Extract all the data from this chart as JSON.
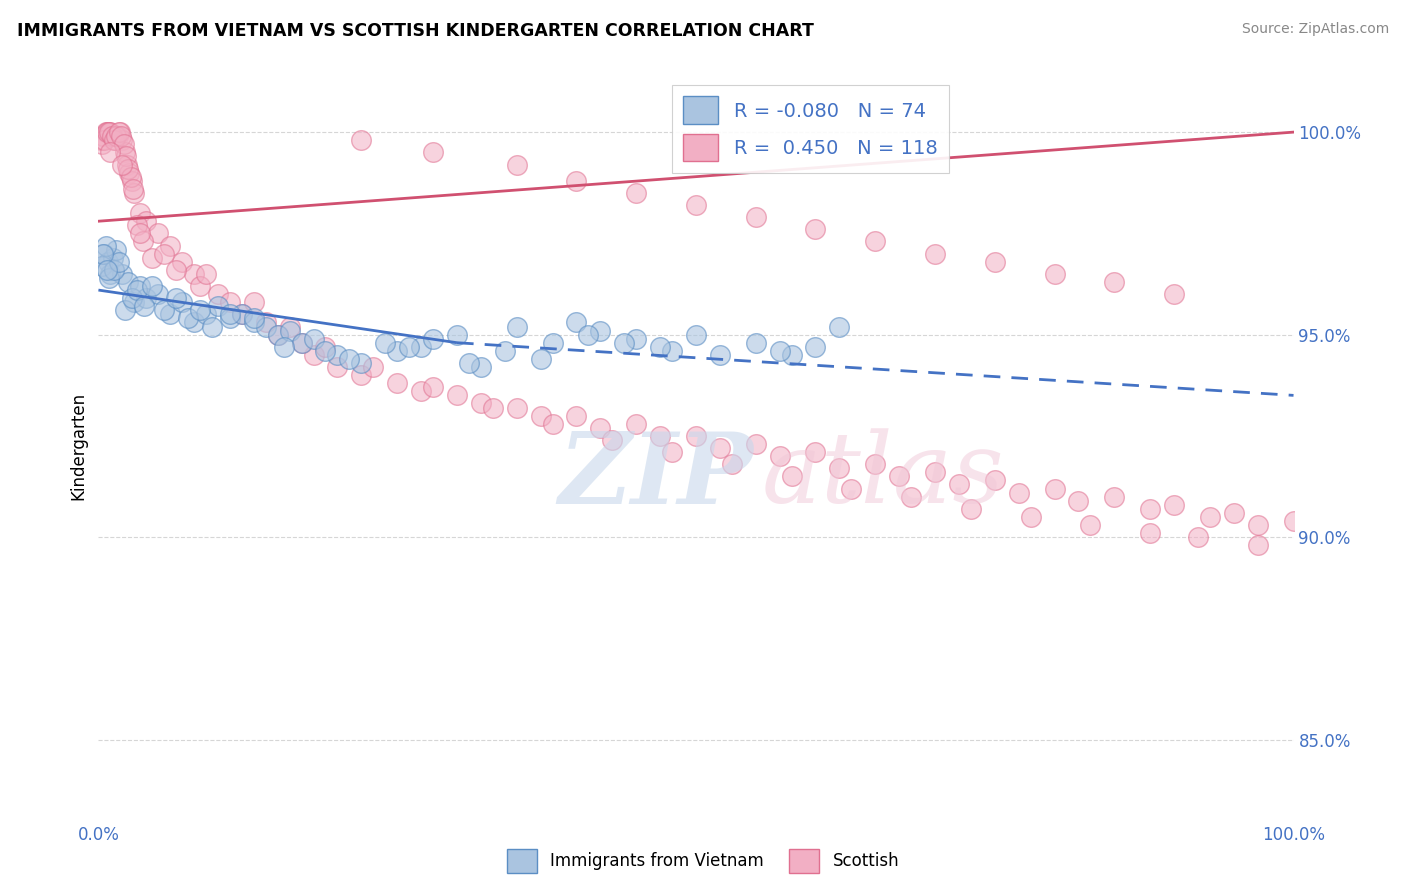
{
  "title": "IMMIGRANTS FROM VIETNAM VS SCOTTISH KINDERGARTEN CORRELATION CHART",
  "source": "Source: ZipAtlas.com",
  "ylabel": "Kindergarten",
  "R_blue": -0.08,
  "N_blue": 74,
  "R_pink": 0.45,
  "N_pink": 118,
  "blue_color": "#aac4e0",
  "pink_color": "#f2afc4",
  "blue_edge_color": "#5b8ec4",
  "pink_edge_color": "#e07090",
  "blue_line_color": "#4472c4",
  "pink_line_color": "#d05070",
  "legend_blue_color": "#4472c4",
  "legend_pink_color": "#e07898",
  "yticks": [
    85.0,
    90.0,
    95.0,
    100.0
  ],
  "ytick_labels": [
    "85.0%",
    "90.0%",
    "95.0%",
    "100.0%"
  ],
  "xlim": [
    0,
    100
  ],
  "ylim": [
    83.0,
    101.5
  ],
  "blue_line_x": [
    0,
    100
  ],
  "blue_line_y_solid_start": 96.1,
  "blue_line_y_solid_end": 94.8,
  "blue_line_solid_end_x": 30,
  "blue_line_y_dash_start": 94.8,
  "blue_line_y_dash_end": 93.5,
  "pink_line_x": [
    0,
    100
  ],
  "pink_line_y_start": 97.8,
  "pink_line_y_end": 100.0,
  "blue_dots_x": [
    0.5,
    0.8,
    1.0,
    1.2,
    1.5,
    2.0,
    2.5,
    3.0,
    3.5,
    4.0,
    5.0,
    6.0,
    7.0,
    8.0,
    9.0,
    10.0,
    11.0,
    12.0,
    13.0,
    14.0,
    15.0,
    16.0,
    17.0,
    18.0,
    20.0,
    22.0,
    25.0,
    27.0,
    30.0,
    32.0,
    35.0,
    38.0,
    40.0,
    42.0,
    45.0,
    48.0,
    50.0,
    55.0,
    58.0,
    60.0,
    62.0,
    0.3,
    0.6,
    0.9,
    1.3,
    1.7,
    2.2,
    2.8,
    3.2,
    3.8,
    4.5,
    5.5,
    6.5,
    7.5,
    8.5,
    9.5,
    11.0,
    13.0,
    15.5,
    19.0,
    21.0,
    24.0,
    26.0,
    28.0,
    31.0,
    34.0,
    37.0,
    41.0,
    44.0,
    47.0,
    52.0,
    57.0,
    0.4,
    0.7
  ],
  "blue_dots_y": [
    97.0,
    96.8,
    96.5,
    96.9,
    97.1,
    96.5,
    96.3,
    95.8,
    96.2,
    95.9,
    96.0,
    95.5,
    95.8,
    95.3,
    95.5,
    95.7,
    95.4,
    95.5,
    95.3,
    95.2,
    95.0,
    95.1,
    94.8,
    94.9,
    94.5,
    94.3,
    94.6,
    94.7,
    95.0,
    94.2,
    95.2,
    94.8,
    95.3,
    95.1,
    94.9,
    94.6,
    95.0,
    94.8,
    94.5,
    94.7,
    95.2,
    96.7,
    97.2,
    96.4,
    96.6,
    96.8,
    95.6,
    95.9,
    96.1,
    95.7,
    96.2,
    95.6,
    95.9,
    95.4,
    95.6,
    95.2,
    95.5,
    95.4,
    94.7,
    94.6,
    94.4,
    94.8,
    94.7,
    94.9,
    94.3,
    94.6,
    94.4,
    95.0,
    94.8,
    94.7,
    94.5,
    94.6,
    97.0,
    96.6
  ],
  "pink_dots_x": [
    0.2,
    0.4,
    0.6,
    0.8,
    1.0,
    1.2,
    1.4,
    1.6,
    1.8,
    2.0,
    2.2,
    2.4,
    2.6,
    2.8,
    3.0,
    3.5,
    4.0,
    5.0,
    6.0,
    7.0,
    8.0,
    10.0,
    12.0,
    15.0,
    18.0,
    20.0,
    25.0,
    30.0,
    35.0,
    40.0,
    45.0,
    50.0,
    55.0,
    60.0,
    65.0,
    70.0,
    75.0,
    80.0,
    85.0,
    90.0,
    95.0,
    100.0,
    0.3,
    0.5,
    0.7,
    0.9,
    1.1,
    1.3,
    1.5,
    1.7,
    1.9,
    2.1,
    2.3,
    2.5,
    2.7,
    2.9,
    3.2,
    3.7,
    4.5,
    5.5,
    6.5,
    8.5,
    11.0,
    14.0,
    17.0,
    22.0,
    27.0,
    32.0,
    37.0,
    42.0,
    47.0,
    52.0,
    57.0,
    62.0,
    67.0,
    72.0,
    77.0,
    82.0,
    88.0,
    93.0,
    97.0,
    1.0,
    2.0,
    3.5,
    9.0,
    13.0,
    16.0,
    19.0,
    23.0,
    28.0,
    33.0,
    38.0,
    43.0,
    48.0,
    53.0,
    58.0,
    63.0,
    68.0,
    73.0,
    78.0,
    83.0,
    88.0,
    92.0,
    97.0,
    22.0,
    28.0,
    35.0,
    40.0,
    45.0,
    50.0,
    55.0,
    60.0,
    65.0,
    70.0,
    75.0,
    80.0,
    85.0,
    90.0
  ],
  "pink_dots_y": [
    99.8,
    99.9,
    100.0,
    100.0,
    100.0,
    99.9,
    99.8,
    99.9,
    100.0,
    99.8,
    99.5,
    99.2,
    99.0,
    98.8,
    98.5,
    98.0,
    97.8,
    97.5,
    97.2,
    96.8,
    96.5,
    96.0,
    95.5,
    95.0,
    94.5,
    94.2,
    93.8,
    93.5,
    93.2,
    93.0,
    92.8,
    92.5,
    92.3,
    92.1,
    91.8,
    91.6,
    91.4,
    91.2,
    91.0,
    90.8,
    90.6,
    90.4,
    99.7,
    99.8,
    100.0,
    100.0,
    99.9,
    99.8,
    99.9,
    100.0,
    99.9,
    99.7,
    99.4,
    99.1,
    98.9,
    98.6,
    97.7,
    97.3,
    96.9,
    97.0,
    96.6,
    96.2,
    95.8,
    95.3,
    94.8,
    94.0,
    93.6,
    93.3,
    93.0,
    92.7,
    92.5,
    92.2,
    92.0,
    91.7,
    91.5,
    91.3,
    91.1,
    90.9,
    90.7,
    90.5,
    90.3,
    99.5,
    99.2,
    97.5,
    96.5,
    95.8,
    95.2,
    94.7,
    94.2,
    93.7,
    93.2,
    92.8,
    92.4,
    92.1,
    91.8,
    91.5,
    91.2,
    91.0,
    90.7,
    90.5,
    90.3,
    90.1,
    90.0,
    89.8,
    99.8,
    99.5,
    99.2,
    98.8,
    98.5,
    98.2,
    97.9,
    97.6,
    97.3,
    97.0,
    96.8,
    96.5,
    96.3,
    96.0
  ]
}
